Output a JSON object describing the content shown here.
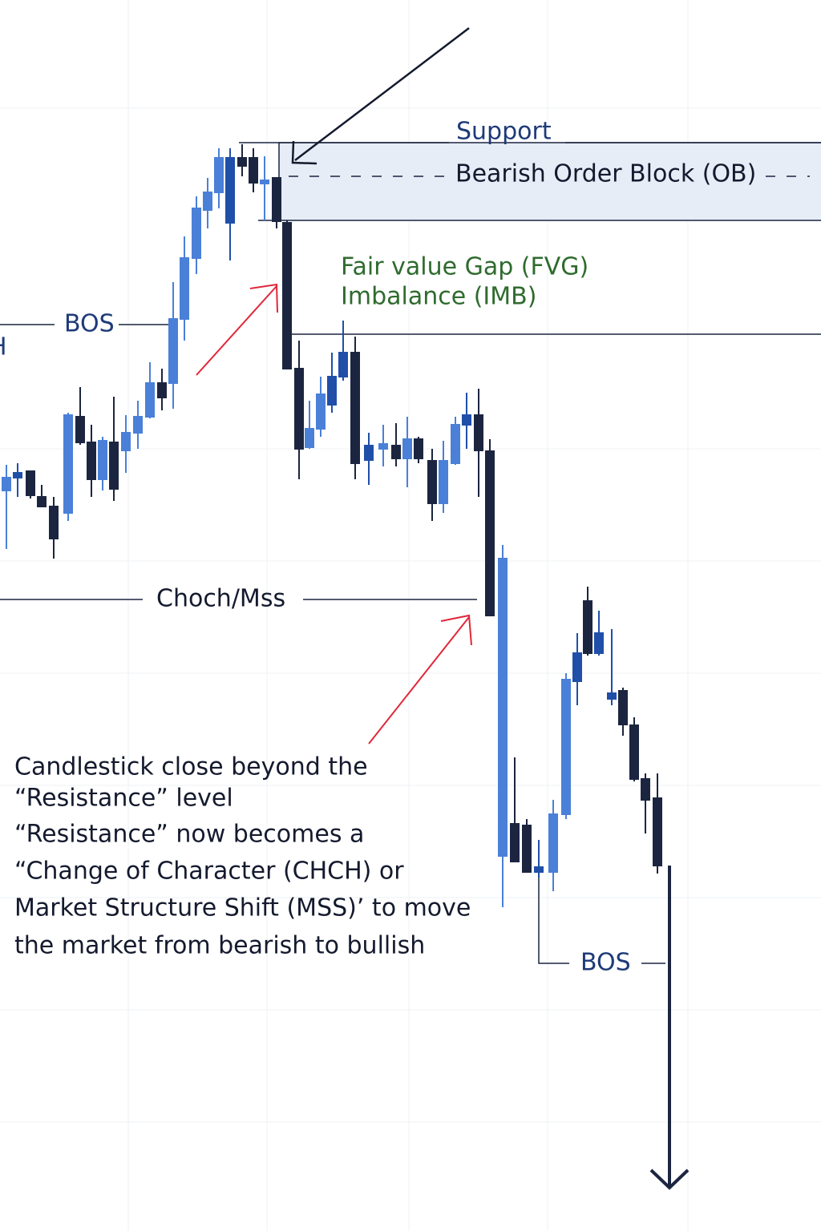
{
  "labels": {
    "support": "Support",
    "order_block": "Bearish Order Block (OB)",
    "fvg": "Fair value Gap (FVG)",
    "imbalance": "Imbalance (IMB)",
    "bos_upper": "BOS",
    "h": "H",
    "choch": "Choch/Mss",
    "bos_lower": "BOS"
  },
  "note": {
    "lines": [
      "Candlestick close beyond the",
      "“Resistance” level",
      "“Resistance” now becomes a",
      "“Change of Character (CHCH) or",
      "Market Structure Shift (MSS)’ to move",
      "the market from bearish to bullish"
    ]
  }
}
